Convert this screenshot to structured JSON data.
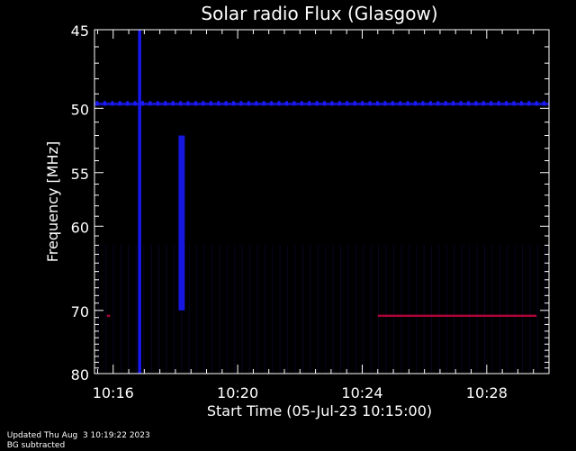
{
  "chart_data": {
    "type": "heatmap",
    "title": "Solar radio Flux (Glasgow)",
    "xlabel": "Start Time (05-Jul-23 10:15:00)",
    "ylabel": "Frequency [MHz]",
    "x_ticks": [
      "10:16",
      "10:20",
      "10:24",
      "10:28"
    ],
    "x_tick_minutes": [
      16,
      20,
      24,
      28
    ],
    "xlim_minutes": [
      15.4,
      30.0
    ],
    "y_ticks": [
      45,
      50,
      55,
      60,
      70,
      80
    ],
    "ylim": [
      45,
      80
    ],
    "y_scale": "reciprocal",
    "colors": {
      "background": "#000000",
      "signal": "#1a1aff",
      "intense": "#b0003a"
    },
    "features": [
      {
        "name": "",
        "minute_start": 16.8,
        "minute_end": 16.9,
        "freq_start": 45,
        "freq_end": 80,
        "intensity": 0.9
      },
      {
        "name": "",
        "minute_start": 18.1,
        "minute_end": 18.3,
        "freq_start": 52,
        "freq_end": 70,
        "intensity": 0.8
      },
      {
        "name": "",
        "minute_start": 15.4,
        "minute_end": 30.0,
        "freq_start": 49.6,
        "freq_end": 49.8,
        "intensity": 0.6
      },
      {
        "name": "",
        "minute_start": 24.5,
        "minute_end": 29.6,
        "freq_start": 70.6,
        "freq_end": 70.9,
        "intensity": 1.0
      },
      {
        "name": "",
        "minute_start": 15.8,
        "minute_end": 15.9,
        "freq_start": 70.6,
        "freq_end": 70.9,
        "intensity": 1.0
      }
    ]
  },
  "footer": {
    "updated": "Updated Thu Aug  3 10:19:22 2023",
    "note": "BG subtracted"
  }
}
